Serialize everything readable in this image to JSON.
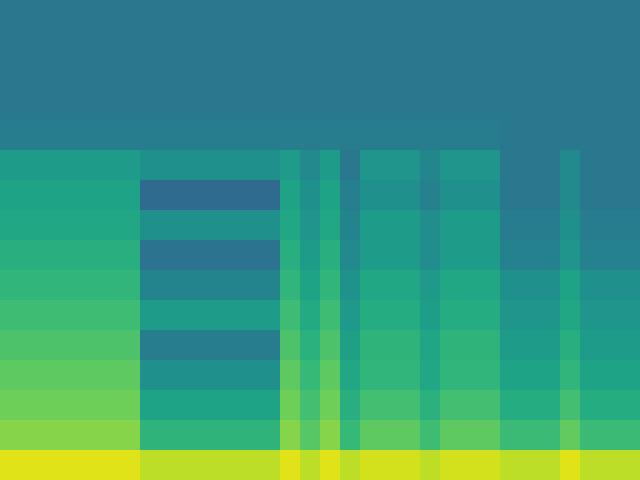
{
  "chart_data": {
    "type": "heatmap",
    "tick_labels": false,
    "clim": [
      0,
      1
    ],
    "cells": [
      [
        0.4,
        0.4,
        0.4,
        0.4,
        0.4,
        0.4,
        0.4,
        0.4,
        0.4,
        0.4,
        0.4,
        0.4,
        0.4,
        0.4,
        0.4,
        0.4,
        0.4,
        0.4,
        0.4,
        0.4,
        0.4,
        0.4,
        0.4,
        0.4,
        0.4,
        0.4,
        0.4,
        0.4,
        0.4,
        0.4,
        0.4,
        0.4
      ],
      [
        0.4,
        0.4,
        0.4,
        0.4,
        0.4,
        0.4,
        0.4,
        0.4,
        0.4,
        0.4,
        0.4,
        0.4,
        0.4,
        0.4,
        0.4,
        0.4,
        0.4,
        0.4,
        0.4,
        0.4,
        0.4,
        0.4,
        0.4,
        0.4,
        0.4,
        0.4,
        0.4,
        0.4,
        0.4,
        0.4,
        0.4,
        0.4
      ],
      [
        0.4,
        0.4,
        0.4,
        0.4,
        0.4,
        0.4,
        0.4,
        0.4,
        0.4,
        0.4,
        0.4,
        0.4,
        0.4,
        0.4,
        0.4,
        0.4,
        0.4,
        0.4,
        0.4,
        0.4,
        0.4,
        0.4,
        0.4,
        0.4,
        0.4,
        0.4,
        0.4,
        0.4,
        0.4,
        0.4,
        0.4,
        0.4
      ],
      [
        0.4,
        0.4,
        0.4,
        0.4,
        0.4,
        0.4,
        0.4,
        0.4,
        0.4,
        0.4,
        0.4,
        0.4,
        0.4,
        0.4,
        0.4,
        0.4,
        0.4,
        0.4,
        0.4,
        0.4,
        0.4,
        0.4,
        0.4,
        0.4,
        0.4,
        0.4,
        0.4,
        0.4,
        0.4,
        0.4,
        0.4,
        0.4
      ],
      [
        0.42,
        0.42,
        0.42,
        0.42,
        0.42,
        0.42,
        0.42,
        0.42,
        0.42,
        0.42,
        0.42,
        0.42,
        0.42,
        0.42,
        0.42,
        0.42,
        0.42,
        0.42,
        0.42,
        0.42,
        0.42,
        0.42,
        0.42,
        0.42,
        0.42,
        0.4,
        0.4,
        0.4,
        0.4,
        0.4,
        0.4,
        0.4
      ],
      [
        0.55,
        0.55,
        0.55,
        0.55,
        0.55,
        0.55,
        0.55,
        0.5,
        0.5,
        0.5,
        0.5,
        0.5,
        0.5,
        0.5,
        0.55,
        0.47,
        0.55,
        0.4,
        0.52,
        0.52,
        0.52,
        0.46,
        0.52,
        0.52,
        0.52,
        0.4,
        0.4,
        0.4,
        0.48,
        0.4,
        0.4,
        0.4
      ],
      [
        0.58,
        0.58,
        0.58,
        0.58,
        0.58,
        0.58,
        0.58,
        0.35,
        0.35,
        0.35,
        0.35,
        0.35,
        0.35,
        0.35,
        0.58,
        0.5,
        0.58,
        0.43,
        0.5,
        0.5,
        0.5,
        0.44,
        0.5,
        0.5,
        0.5,
        0.4,
        0.4,
        0.4,
        0.48,
        0.4,
        0.4,
        0.4
      ],
      [
        0.6,
        0.6,
        0.6,
        0.6,
        0.6,
        0.6,
        0.6,
        0.5,
        0.5,
        0.5,
        0.5,
        0.5,
        0.5,
        0.5,
        0.6,
        0.52,
        0.6,
        0.45,
        0.55,
        0.55,
        0.55,
        0.49,
        0.55,
        0.55,
        0.55,
        0.42,
        0.42,
        0.42,
        0.5,
        0.42,
        0.42,
        0.42
      ],
      [
        0.63,
        0.63,
        0.63,
        0.63,
        0.63,
        0.63,
        0.63,
        0.38,
        0.38,
        0.38,
        0.38,
        0.38,
        0.38,
        0.38,
        0.63,
        0.55,
        0.63,
        0.48,
        0.55,
        0.55,
        0.55,
        0.49,
        0.55,
        0.55,
        0.55,
        0.44,
        0.44,
        0.44,
        0.52,
        0.44,
        0.44,
        0.44
      ],
      [
        0.66,
        0.66,
        0.66,
        0.66,
        0.66,
        0.66,
        0.66,
        0.45,
        0.45,
        0.45,
        0.45,
        0.45,
        0.45,
        0.45,
        0.66,
        0.58,
        0.66,
        0.51,
        0.6,
        0.6,
        0.6,
        0.54,
        0.6,
        0.6,
        0.6,
        0.5,
        0.5,
        0.5,
        0.58,
        0.5,
        0.5,
        0.5
      ],
      [
        0.69,
        0.69,
        0.69,
        0.69,
        0.69,
        0.69,
        0.69,
        0.55,
        0.55,
        0.55,
        0.55,
        0.55,
        0.55,
        0.55,
        0.69,
        0.61,
        0.69,
        0.54,
        0.62,
        0.62,
        0.62,
        0.56,
        0.62,
        0.62,
        0.62,
        0.52,
        0.52,
        0.52,
        0.6,
        0.52,
        0.52,
        0.52
      ],
      [
        0.72,
        0.72,
        0.72,
        0.72,
        0.72,
        0.72,
        0.72,
        0.42,
        0.42,
        0.42,
        0.42,
        0.42,
        0.42,
        0.42,
        0.72,
        0.64,
        0.72,
        0.57,
        0.65,
        0.65,
        0.65,
        0.59,
        0.65,
        0.65,
        0.65,
        0.55,
        0.55,
        0.55,
        0.63,
        0.55,
        0.55,
        0.55
      ],
      [
        0.75,
        0.75,
        0.75,
        0.75,
        0.75,
        0.75,
        0.75,
        0.5,
        0.5,
        0.5,
        0.5,
        0.5,
        0.5,
        0.5,
        0.75,
        0.67,
        0.75,
        0.6,
        0.66,
        0.66,
        0.66,
        0.6,
        0.66,
        0.66,
        0.66,
        0.58,
        0.58,
        0.58,
        0.66,
        0.58,
        0.58,
        0.58
      ],
      [
        0.78,
        0.78,
        0.78,
        0.78,
        0.78,
        0.78,
        0.78,
        0.58,
        0.58,
        0.58,
        0.58,
        0.58,
        0.58,
        0.58,
        0.78,
        0.7,
        0.78,
        0.63,
        0.7,
        0.7,
        0.7,
        0.64,
        0.7,
        0.7,
        0.7,
        0.62,
        0.62,
        0.62,
        0.7,
        0.62,
        0.62,
        0.62
      ],
      [
        0.82,
        0.82,
        0.82,
        0.82,
        0.82,
        0.82,
        0.82,
        0.65,
        0.65,
        0.65,
        0.65,
        0.65,
        0.65,
        0.65,
        0.82,
        0.74,
        0.82,
        0.67,
        0.75,
        0.75,
        0.75,
        0.69,
        0.75,
        0.75,
        0.75,
        0.68,
        0.68,
        0.68,
        0.76,
        0.68,
        0.68,
        0.68
      ],
      [
        0.95,
        0.95,
        0.95,
        0.95,
        0.95,
        0.95,
        0.95,
        0.9,
        0.9,
        0.9,
        0.9,
        0.9,
        0.9,
        0.9,
        0.95,
        0.9,
        0.95,
        0.9,
        0.93,
        0.93,
        0.93,
        0.9,
        0.93,
        0.93,
        0.93,
        0.9,
        0.9,
        0.9,
        0.95,
        0.9,
        0.9,
        0.9
      ]
    ]
  }
}
